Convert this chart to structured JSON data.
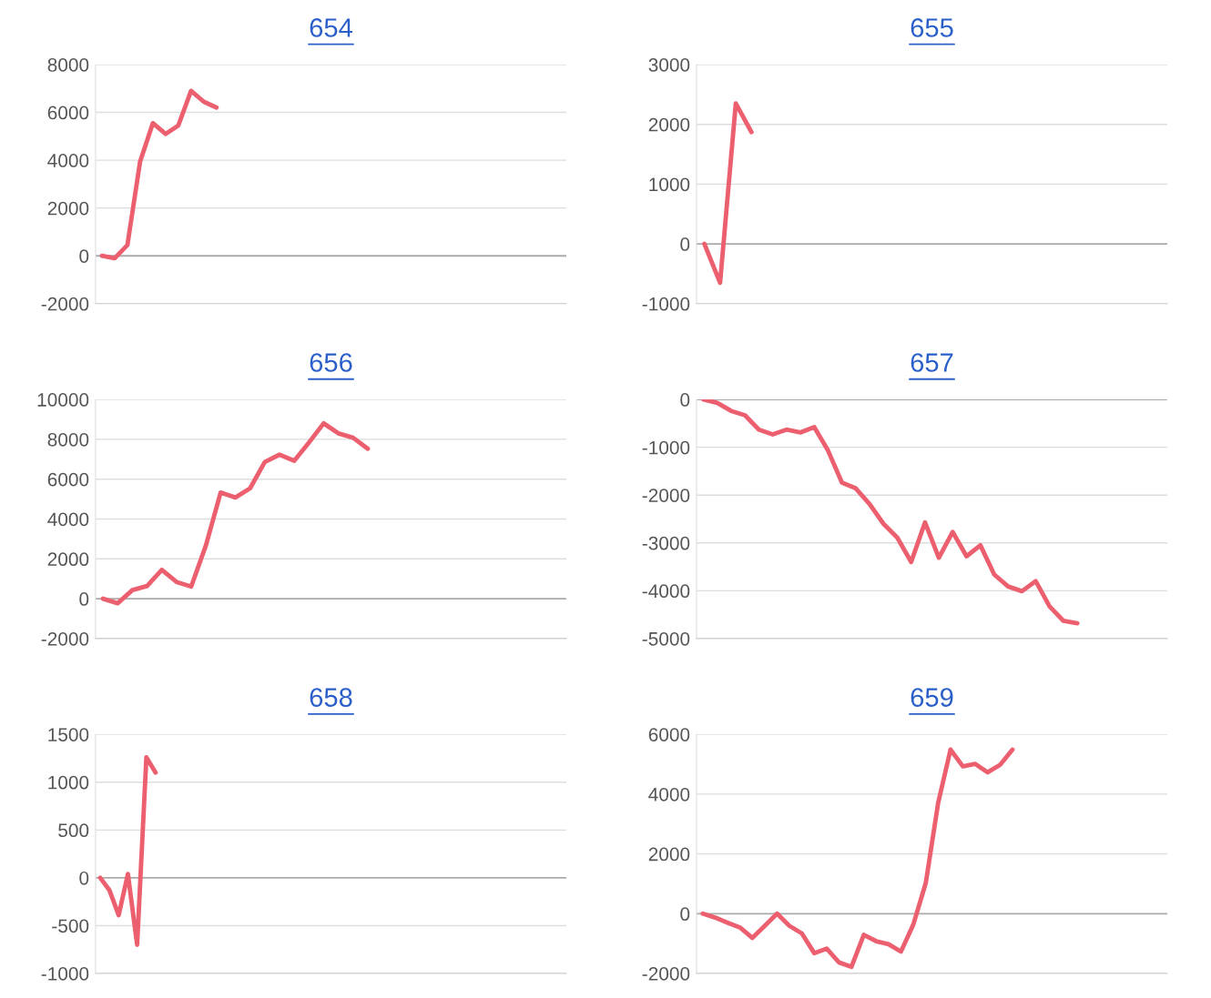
{
  "chart_data": [
    {
      "type": "line",
      "title": "654",
      "categories": [
        null,
        null,
        null,
        null,
        null,
        null,
        null,
        null,
        null,
        null,
        null,
        null,
        null,
        null,
        null,
        null,
        null,
        null,
        null,
        null,
        null,
        null,
        null,
        null,
        null,
        null,
        null,
        null,
        null,
        null,
        null,
        null,
        null,
        null,
        null,
        null,
        null
      ],
      "series": [
        {
          "color": "#eb5f6f",
          "values": [
            0,
            -100,
            450,
            3950,
            5550,
            5100,
            5450,
            6900,
            6450,
            6200,
            null,
            null,
            null,
            null,
            null,
            null,
            null,
            null,
            null,
            null,
            null,
            null,
            null,
            null,
            null,
            null,
            null,
            null,
            null,
            null,
            null,
            null,
            null,
            null,
            null,
            null,
            null
          ]
        }
      ],
      "ylim": [
        -2000,
        8000
      ],
      "yticks": [
        -2000,
        0,
        2000,
        4000,
        6000,
        8000
      ],
      "grid": "y",
      "tick_labels": "y"
    },
    {
      "type": "line",
      "title": "655",
      "categories": [
        null,
        null,
        null,
        null,
        null,
        null,
        null,
        null,
        null,
        null,
        null,
        null,
        null,
        null,
        null,
        null,
        null,
        null,
        null,
        null,
        null,
        null,
        null,
        null,
        null,
        null,
        null,
        null,
        null,
        null
      ],
      "series": [
        {
          "color": "#eb5f6f",
          "values": [
            0,
            -650,
            2350,
            1870,
            null,
            null,
            null,
            null,
            null,
            null,
            null,
            null,
            null,
            null,
            null,
            null,
            null,
            null,
            null,
            null,
            null,
            null,
            null,
            null,
            null,
            null,
            null,
            null,
            null,
            null
          ]
        }
      ],
      "ylim": [
        -1000,
        3000
      ],
      "yticks": [
        -1000,
        0,
        1000,
        2000,
        3000
      ],
      "grid": "y",
      "tick_labels": "y"
    },
    {
      "type": "line",
      "title": "656",
      "categories": [
        null,
        null,
        null,
        null,
        null,
        null,
        null,
        null,
        null,
        null,
        null,
        null,
        null,
        null,
        null,
        null,
        null,
        null,
        null,
        null,
        null,
        null,
        null,
        null,
        null,
        null,
        null,
        null,
        null,
        null,
        null,
        null
      ],
      "series": [
        {
          "color": "#eb5f6f",
          "values": [
            0,
            -230,
            430,
            640,
            1450,
            840,
            610,
            2680,
            5330,
            5080,
            5540,
            6860,
            7230,
            6920,
            7840,
            8800,
            8300,
            8080,
            7530,
            null,
            null,
            null,
            null,
            null,
            null,
            null,
            null,
            null,
            null,
            null,
            null,
            null
          ]
        }
      ],
      "ylim": [
        -2000,
        10000
      ],
      "yticks": [
        -2000,
        0,
        2000,
        4000,
        6000,
        8000,
        10000
      ],
      "grid": "y",
      "tick_labels": "y"
    },
    {
      "type": "line",
      "title": "657",
      "categories": [
        null,
        null,
        null,
        null,
        null,
        null,
        null,
        null,
        null,
        null,
        null,
        null,
        null,
        null,
        null,
        null,
        null,
        null,
        null,
        null,
        null,
        null,
        null,
        null,
        null,
        null,
        null,
        null,
        null,
        null,
        null,
        null,
        null,
        null
      ],
      "series": [
        {
          "color": "#eb5f6f",
          "values": [
            0,
            -70,
            -240,
            -330,
            -630,
            -730,
            -630,
            -690,
            -580,
            -1070,
            -1740,
            -1860,
            -2190,
            -2600,
            -2890,
            -3400,
            -2570,
            -3310,
            -2770,
            -3280,
            -3050,
            -3660,
            -3910,
            -4010,
            -3800,
            -4330,
            -4630,
            -4680,
            null,
            null,
            null,
            null,
            null,
            null
          ]
        }
      ],
      "ylim": [
        -5000,
        0
      ],
      "yticks": [
        -5000,
        -4000,
        -3000,
        -2000,
        -1000,
        0
      ],
      "grid": "y",
      "tick_labels": "y"
    },
    {
      "type": "line",
      "title": "658",
      "categories": [
        null,
        null,
        null,
        null,
        null,
        null,
        null,
        null,
        null,
        null,
        null,
        null,
        null,
        null,
        null,
        null,
        null,
        null,
        null,
        null,
        null,
        null,
        null,
        null,
        null,
        null,
        null,
        null,
        null,
        null,
        null,
        null,
        null,
        null,
        null,
        null,
        null,
        null,
        null,
        null,
        null,
        null,
        null,
        null,
        null,
        null,
        null,
        null,
        null,
        null,
        null
      ],
      "series": [
        {
          "color": "#eb5f6f",
          "values": [
            0,
            -130,
            -390,
            40,
            -700,
            1260,
            1100,
            null,
            null,
            null,
            null,
            null,
            null,
            null,
            null,
            null,
            null,
            null,
            null,
            null,
            null,
            null,
            null,
            null,
            null,
            null,
            null,
            null,
            null,
            null,
            null,
            null,
            null,
            null,
            null,
            null,
            null,
            null,
            null,
            null,
            null,
            null,
            null,
            null,
            null,
            null,
            null,
            null,
            null,
            null,
            null
          ]
        }
      ],
      "ylim": [
        -1000,
        1500
      ],
      "yticks": [
        -1000,
        -500,
        0,
        500,
        1000,
        1500
      ],
      "grid": "y",
      "tick_labels": "y"
    },
    {
      "type": "line",
      "title": "659",
      "categories": [
        null,
        null,
        null,
        null,
        null,
        null,
        null,
        null,
        null,
        null,
        null,
        null,
        null,
        null,
        null,
        null,
        null,
        null,
        null,
        null,
        null,
        null,
        null,
        null,
        null,
        null,
        null,
        null,
        null,
        null,
        null,
        null,
        null,
        null,
        null,
        null,
        null,
        null
      ],
      "series": [
        {
          "color": "#eb5f6f",
          "values": [
            0,
            -130,
            -300,
            -460,
            -810,
            -410,
            0,
            -410,
            -660,
            -1320,
            -1170,
            -1630,
            -1780,
            -710,
            -920,
            -1020,
            -1270,
            -360,
            1020,
            3700,
            5490,
            4930,
            5010,
            4730,
            4980,
            5490,
            null,
            null,
            null,
            null,
            null,
            null,
            null,
            null,
            null,
            null,
            null,
            null
          ]
        }
      ],
      "ylim": [
        -2000,
        6000
      ],
      "yticks": [
        -2000,
        0,
        2000,
        4000,
        6000
      ],
      "grid": "y",
      "tick_labels": "y"
    }
  ]
}
